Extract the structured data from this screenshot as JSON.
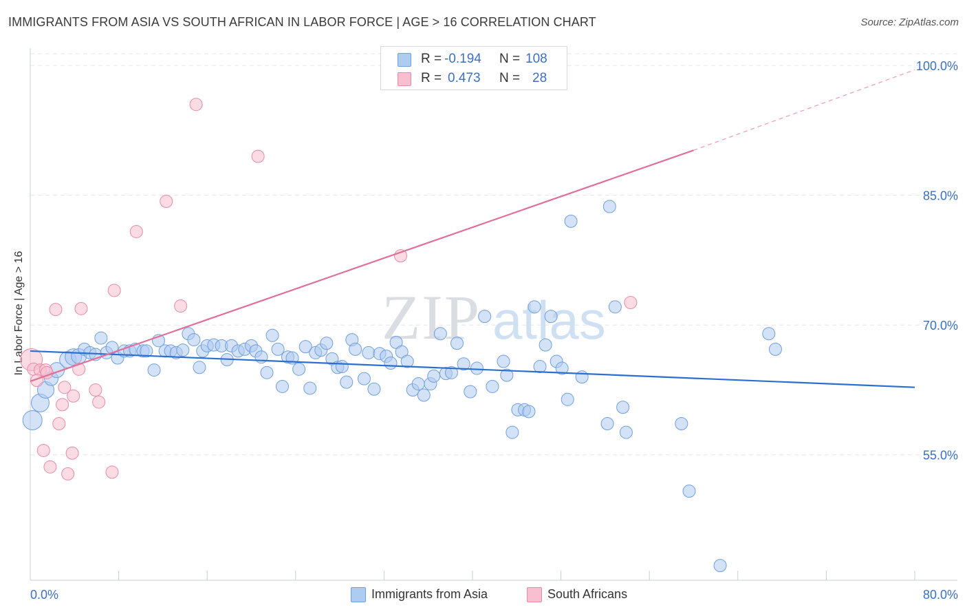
{
  "header": {
    "title": "IMMIGRANTS FROM ASIA VS SOUTH AFRICAN IN LABOR FORCE | AGE > 16 CORRELATION CHART",
    "source": "Source: ZipAtlas.com"
  },
  "watermark": {
    "zip": "ZIP",
    "atlas": "atlas"
  },
  "stats": {
    "rows": [
      {
        "r_label": "R =",
        "r_value": "-0.194",
        "n_label": "N =",
        "n_value": "108",
        "color": "#aecbf0",
        "border": "#6f9fe0"
      },
      {
        "r_label": "R =",
        "r_value": "0.473",
        "n_label": "N =",
        "n_value": "28",
        "color": "#f7bfd0",
        "border": "#e88aa8"
      }
    ]
  },
  "legend": {
    "items": [
      {
        "label": "Immigrants from Asia",
        "color": "#aecbf0",
        "border": "#6f9fe0"
      },
      {
        "label": "South Africans",
        "color": "#f7bfd0",
        "border": "#e88aa8"
      }
    ]
  },
  "chart_data": {
    "type": "scatter",
    "title": "IMMIGRANTS FROM ASIA VS SOUTH AFRICAN IN LABOR FORCE | AGE > 16 CORRELATION CHART",
    "xlabel": "",
    "ylabel": "In Labor Force | Age > 16",
    "xlim": [
      0,
      80
    ],
    "ylim": [
      40.5,
      102
    ],
    "x_tick_labels": [
      {
        "value": 0,
        "label": "0.0%"
      },
      {
        "value": 80,
        "label": "80.0%"
      }
    ],
    "y_tick_labels": [
      {
        "value": 55,
        "label": "55.0%"
      },
      {
        "value": 70,
        "label": "70.0%"
      },
      {
        "value": 85,
        "label": "85.0%"
      },
      {
        "value": 100,
        "label": "100.0%"
      }
    ],
    "x_minor_ticks": [
      0,
      8,
      16,
      24,
      32,
      40,
      48,
      56,
      64,
      72,
      80
    ],
    "grid": true,
    "legend_position": "bottom",
    "series": [
      {
        "name": "Immigrants from Asia",
        "color": "#aecbf0",
        "edge": "#6f9fe0",
        "trend": {
          "x": [
            0,
            80
          ],
          "y": [
            67.0,
            62.8
          ],
          "color": "#2a6fcf"
        },
        "points": [
          [
            0.2,
            59.0,
            14
          ],
          [
            0.9,
            61.0,
            13
          ],
          [
            1.4,
            62.5,
            12
          ],
          [
            1.9,
            63.8,
            10
          ],
          [
            2.4,
            64.8,
            11
          ],
          [
            3.4,
            66.0,
            12
          ],
          [
            3.9,
            66.3,
            12
          ],
          [
            4.4,
            66.4,
            11
          ],
          [
            4.9,
            67.2,
            9
          ],
          [
            5.4,
            66.8,
            9
          ],
          [
            5.9,
            66.6,
            9
          ],
          [
            6.4,
            68.5,
            9
          ],
          [
            6.9,
            66.8,
            9
          ],
          [
            7.4,
            67.4,
            9
          ],
          [
            7.9,
            66.2,
            9
          ],
          [
            8.5,
            67.0,
            9
          ],
          [
            9.0,
            67.0,
            9
          ],
          [
            9.5,
            67.2,
            9
          ],
          [
            10.2,
            67.0,
            9
          ],
          [
            10.5,
            67.0,
            9
          ],
          [
            11.2,
            64.8,
            9
          ],
          [
            11.6,
            68.2,
            9
          ],
          [
            12.2,
            67.0,
            9
          ],
          [
            12.7,
            67.0,
            9
          ],
          [
            13.2,
            66.8,
            9
          ],
          [
            13.8,
            67.1,
            9
          ],
          [
            14.3,
            69.0,
            9
          ],
          [
            14.8,
            68.3,
            9
          ],
          [
            15.3,
            65.1,
            9
          ],
          [
            15.6,
            67.0,
            9
          ],
          [
            16.0,
            67.6,
            9
          ],
          [
            16.6,
            67.7,
            9
          ],
          [
            17.3,
            67.6,
            9
          ],
          [
            17.8,
            66.0,
            9
          ],
          [
            18.2,
            67.6,
            9
          ],
          [
            18.8,
            67.0,
            9
          ],
          [
            19.4,
            67.2,
            9
          ],
          [
            20.0,
            67.6,
            9
          ],
          [
            20.4,
            67.0,
            9
          ],
          [
            20.9,
            66.3,
            9
          ],
          [
            21.4,
            64.5,
            9
          ],
          [
            21.9,
            68.8,
            9
          ],
          [
            22.4,
            67.2,
            9
          ],
          [
            22.8,
            62.9,
            9
          ],
          [
            23.3,
            66.3,
            9
          ],
          [
            23.7,
            66.2,
            9
          ],
          [
            24.3,
            64.9,
            9
          ],
          [
            24.9,
            67.5,
            9
          ],
          [
            25.3,
            62.7,
            9
          ],
          [
            25.8,
            66.8,
            9
          ],
          [
            26.3,
            67.1,
            9
          ],
          [
            26.8,
            67.9,
            9
          ],
          [
            27.3,
            66.1,
            9
          ],
          [
            27.8,
            65.1,
            9
          ],
          [
            28.2,
            65.2,
            9
          ],
          [
            28.6,
            63.4,
            9
          ],
          [
            29.1,
            68.3,
            9
          ],
          [
            29.4,
            67.2,
            9
          ],
          [
            30.2,
            63.8,
            9
          ],
          [
            30.6,
            66.8,
            9
          ],
          [
            31.1,
            62.6,
            9
          ],
          [
            31.6,
            66.7,
            9
          ],
          [
            32.2,
            66.4,
            9
          ],
          [
            32.6,
            65.6,
            9
          ],
          [
            33.1,
            68.0,
            9
          ],
          [
            33.6,
            66.9,
            9
          ],
          [
            34.1,
            65.8,
            9
          ],
          [
            34.6,
            62.5,
            9
          ],
          [
            35.1,
            63.2,
            9
          ],
          [
            35.6,
            61.9,
            9
          ],
          [
            36.2,
            63.2,
            9
          ],
          [
            36.5,
            64.1,
            9
          ],
          [
            37.1,
            69.0,
            9
          ],
          [
            37.6,
            64.4,
            9
          ],
          [
            38.1,
            64.5,
            9
          ],
          [
            38.6,
            67.9,
            9
          ],
          [
            39.2,
            65.5,
            9
          ],
          [
            39.8,
            62.3,
            9
          ],
          [
            40.4,
            65.0,
            9
          ],
          [
            41.1,
            71.0,
            9
          ],
          [
            41.8,
            62.9,
            9
          ],
          [
            42.8,
            65.8,
            9
          ],
          [
            43.1,
            64.2,
            9
          ],
          [
            43.6,
            57.6,
            9
          ],
          [
            44.1,
            60.2,
            9
          ],
          [
            44.7,
            60.2,
            9
          ],
          [
            45.1,
            60.0,
            9
          ],
          [
            45.6,
            72.1,
            9
          ],
          [
            46.1,
            65.2,
            9
          ],
          [
            46.6,
            67.7,
            9
          ],
          [
            47.1,
            71.0,
            9
          ],
          [
            47.6,
            65.8,
            9
          ],
          [
            48.1,
            65.0,
            9
          ],
          [
            48.6,
            61.4,
            9
          ],
          [
            48.9,
            82.0,
            9
          ],
          [
            49.9,
            64.0,
            9
          ],
          [
            52.2,
            58.6,
            9
          ],
          [
            52.4,
            83.7,
            9
          ],
          [
            52.9,
            72.1,
            9
          ],
          [
            53.6,
            60.5,
            9
          ],
          [
            53.9,
            57.6,
            9
          ],
          [
            58.9,
            58.6,
            9
          ],
          [
            59.6,
            50.8,
            9
          ],
          [
            62.4,
            42.2,
            9
          ],
          [
            66.8,
            69.0,
            9
          ],
          [
            67.4,
            67.2,
            9
          ]
        ]
      },
      {
        "name": "South Africans",
        "color": "#f7bfd0",
        "edge": "#e88aa8",
        "trend": {
          "x": [
            0,
            60
          ],
          "y": [
            63.5,
            90.2
          ],
          "dashed_to": [
            80,
            99.5
          ],
          "color": "#e07099"
        },
        "points": [
          [
            0.1,
            66.0,
            16
          ],
          [
            0.3,
            64.9,
            9
          ],
          [
            0.9,
            64.8,
            9
          ],
          [
            1.2,
            55.5,
            9
          ],
          [
            1.4,
            64.8,
            9
          ],
          [
            1.8,
            53.6,
            9
          ],
          [
            2.3,
            71.8,
            9
          ],
          [
            2.6,
            58.6,
            9
          ],
          [
            2.9,
            60.8,
            9
          ],
          [
            3.1,
            62.8,
            9
          ],
          [
            3.4,
            52.8,
            9
          ],
          [
            3.8,
            55.2,
            9
          ],
          [
            3.9,
            61.8,
            9
          ],
          [
            4.4,
            64.9,
            9
          ],
          [
            4.6,
            71.9,
            9
          ],
          [
            5.9,
            62.5,
            9
          ],
          [
            6.2,
            61.1,
            9
          ],
          [
            7.4,
            53.0,
            9
          ],
          [
            7.6,
            74.0,
            9
          ],
          [
            9.6,
            80.8,
            9
          ],
          [
            12.3,
            84.3,
            9
          ],
          [
            13.6,
            72.2,
            9
          ],
          [
            15.0,
            95.5,
            9
          ],
          [
            20.6,
            89.5,
            9
          ],
          [
            33.5,
            78.0,
            9
          ],
          [
            54.3,
            72.6,
            9
          ],
          [
            1.5,
            64.5,
            9
          ],
          [
            0.6,
            63.6,
            9
          ]
        ]
      }
    ]
  }
}
